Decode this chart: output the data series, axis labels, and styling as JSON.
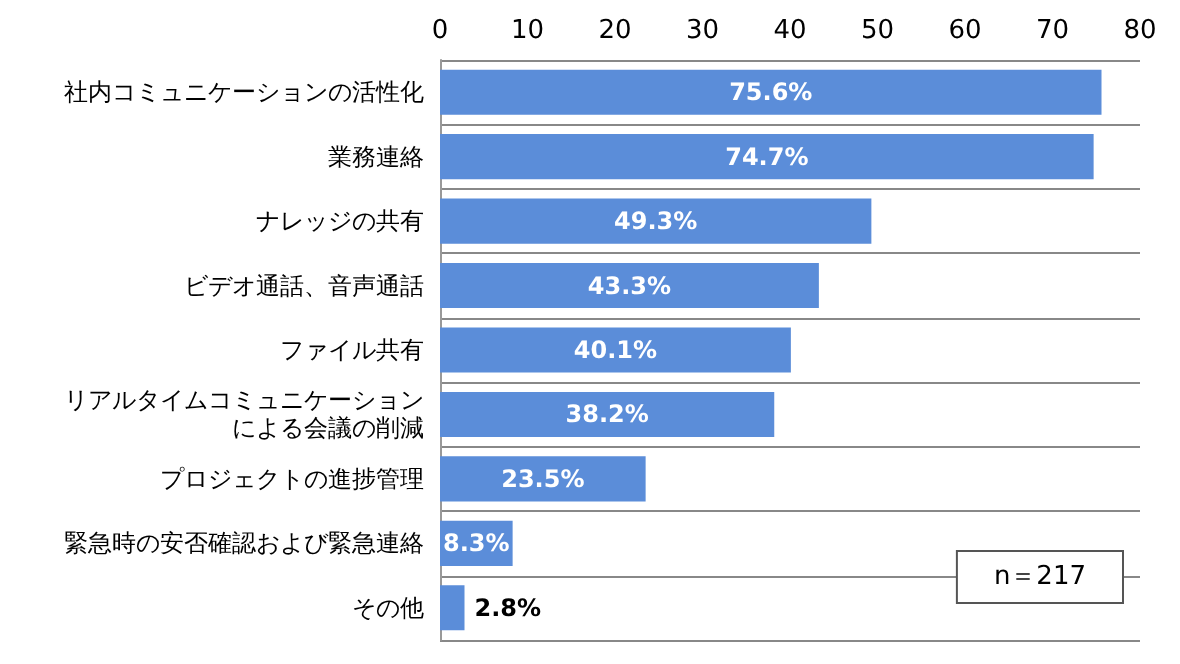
{
  "chart_data": {
    "type": "bar",
    "orientation": "horizontal",
    "categories": [
      "社内コミュニケーションの活性化",
      "業務連絡",
      "ナレッジの共有",
      "ビデオ通話、音声通話",
      "ファイル共有",
      "リアルタイムコミュニケーションによる会議の削減",
      "プロジェクトの進捗管理",
      "緊急時の安否確認および緊急連絡",
      "その他"
    ],
    "values": [
      75.6,
      74.7,
      49.3,
      43.3,
      40.1,
      38.2,
      23.5,
      8.3,
      2.8
    ],
    "value_labels": [
      "75.6%",
      "74.7%",
      "49.3%",
      "43.3%",
      "40.1%",
      "38.2%",
      "23.5%",
      "8.3%",
      "2.8%"
    ],
    "color": "#5b8dd9",
    "xlim": [
      0,
      80
    ],
    "xticks": [
      0,
      10,
      20,
      30,
      40,
      50,
      60,
      70,
      80
    ],
    "grid": "y",
    "annotations": [
      "n＝217"
    ]
  }
}
